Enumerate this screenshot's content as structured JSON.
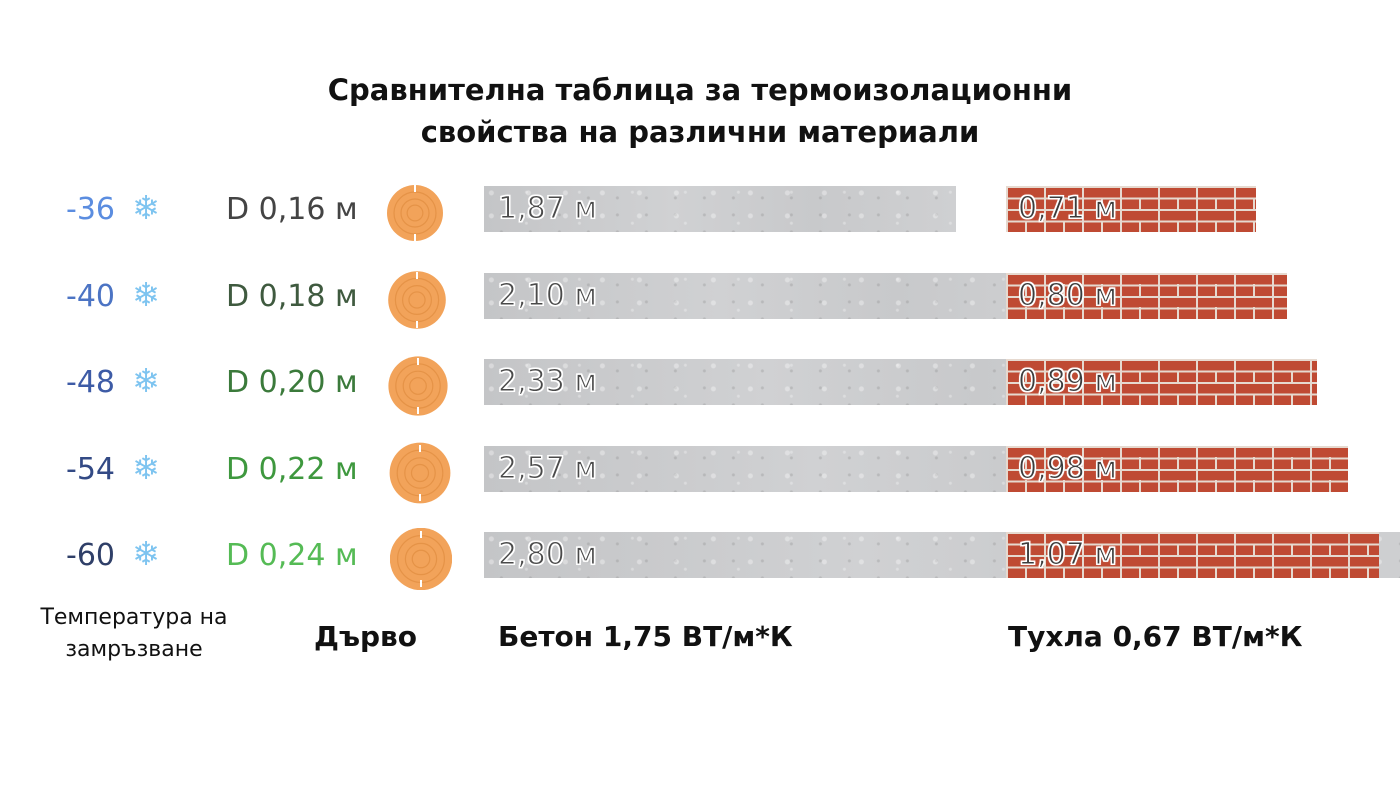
{
  "title_line_1": "Сравнителна таблица за термоизолационни",
  "title_line_2": "свойства на различни материали",
  "footer": {
    "temperature_label": "Температура на замръзване",
    "wood_label": "Дърво",
    "concrete_label": "Бетон 1,75 ВТ/м*К",
    "brick_label": "Тухла 0,67 ВТ/м*К"
  },
  "colors": {
    "temperature": [
      "#5b8de0",
      "#4c74c4",
      "#3d5ba6",
      "#334a85",
      "#2f3f68"
    ],
    "diameter": [
      "#444444",
      "#3f5a3f",
      "#3b7a3b",
      "#3e983e",
      "#55bb55"
    ],
    "snowflake": "#7ec4f0",
    "wood": "#f2a35a",
    "concrete": "#c9cacc",
    "brick": "#bf4a33"
  },
  "icons": {
    "snowflake": "snowflake-icon",
    "wood": "wood-log-icon"
  },
  "chart_data": {
    "type": "bar",
    "categories": [
      "-36",
      "-40",
      "-48",
      "-54",
      "-60"
    ],
    "series": [
      {
        "name": "Дърво",
        "values": [
          0.16,
          0.18,
          0.2,
          0.22,
          0.24
        ],
        "labels": [
          "D 0,16 м",
          "D 0,18 м",
          "D 0,20 м",
          "D 0,22 м",
          "D 0,24 м"
        ]
      },
      {
        "name": "Бетон 1,75 ВТ/м*К",
        "values": [
          1.87,
          2.1,
          2.33,
          2.57,
          2.8
        ],
        "labels": [
          "1,87 м",
          "2,10 м",
          "2,33 м",
          "2,57 м",
          "2,80 м"
        ]
      },
      {
        "name": "Тухла 0,67 ВТ/м*К",
        "values": [
          0.71,
          0.8,
          0.89,
          0.98,
          1.07
        ],
        "labels": [
          "0,71 м",
          "0,80 м",
          "0,89 м",
          "0,98 м",
          "1,07 м"
        ]
      }
    ],
    "xlabel": "Температура на замръзване",
    "grid": false
  }
}
